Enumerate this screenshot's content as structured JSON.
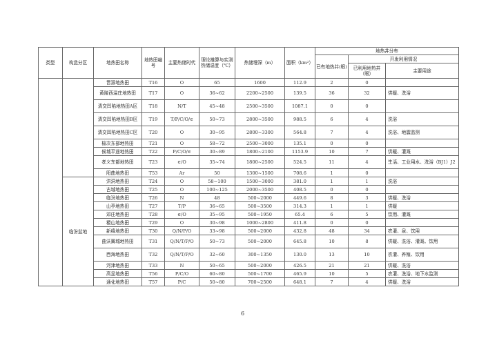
{
  "headers": {
    "type": "类型",
    "zone": "构造分区",
    "name": "地热田名称",
    "code": "地热田编号",
    "era": "主要热储时代",
    "temp": "理论推算与实测热储温度（℃）",
    "depth": "热储埋深（m）",
    "area": "面积（km²）",
    "wells_group": "地热井分布",
    "existing": "已有地热井(眼)",
    "dev_group": "开发利用情况",
    "used": "已利用地热井（眼）",
    "use": "主要用途"
  },
  "sections": [
    {
      "zone": "",
      "rows": [
        {
          "name": "晋源地热田",
          "code": "T16",
          "era": "O",
          "temp": "65",
          "depth": "1600",
          "area": "112.9",
          "existing": "2",
          "used": "0",
          "use": "",
          "tall": false
        },
        {
          "name": "黄陵西温庄地热田",
          "code": "T17",
          "era": "O",
          "temp": "36~62",
          "depth": "2200~2500",
          "area": "139.5",
          "existing": "36",
          "used": "32",
          "use": "供暖、洗浴",
          "tall": true
        },
        {
          "name": "清交凹陷地热田A区",
          "code": "T18",
          "era": "N/T",
          "temp": "45~48",
          "depth": "2500~3500",
          "area": "1087.1",
          "existing": "0",
          "used": "0",
          "use": "",
          "tall": true
        },
        {
          "name": "清交凹陷地热田B区",
          "code": "T19",
          "era": "T/P/C/O/∈",
          "temp": "50~73",
          "depth": "2800~3500",
          "area": "988.5",
          "existing": "6",
          "used": "4",
          "use": "洗浴",
          "tall": true
        },
        {
          "name": "清交凹陷地热田C区",
          "code": "T20",
          "era": "O",
          "temp": "30~95",
          "depth": "2800~3300",
          "area": "564.8",
          "existing": "7",
          "used": "4",
          "use": "洗浴、地震监测",
          "tall": true
        },
        {
          "name": "榆次东部地热田",
          "code": "T21",
          "era": "O",
          "temp": "58~72",
          "depth": "2500~3000",
          "area": "135.1",
          "existing": "0",
          "used": "0",
          "use": "",
          "tall": false
        },
        {
          "name": "候城平遥地热田",
          "code": "T22",
          "era": "P/C/O/∈",
          "temp": "30~89",
          "depth": "1800~2100",
          "area": "1153.9",
          "existing": "10",
          "used": "7",
          "use": "供暖、灌溉",
          "tall": false
        },
        {
          "name": "孝义东部地热田",
          "code": "T23",
          "era": "∈/O",
          "temp": "35~74",
          "depth": "1800~2500",
          "area": "524.5",
          "existing": "11",
          "used": "4",
          "use": "生活、工业用水、洗浴（BJ1）J2",
          "tall": true
        },
        {
          "name": "阳曲地热田",
          "code": "T53",
          "era": "Ar",
          "temp": "50",
          "depth": "1300~1500",
          "area": "708.6",
          "existing": "1",
          "used": "0",
          "use": "",
          "tall": false
        }
      ]
    },
    {
      "zone": "临汾盆地",
      "rows": [
        {
          "name": "洪洞地热田",
          "code": "T24",
          "era": "O",
          "temp": "58~100",
          "depth": "1500~3000",
          "area": "381.0",
          "existing": "1",
          "used": "1",
          "use": "洗浴",
          "tall": false
        },
        {
          "name": "古城地热田",
          "code": "T25",
          "era": "O",
          "temp": "100~125",
          "depth": "2000~3500",
          "area": "408.5",
          "existing": "0",
          "used": "0",
          "use": "",
          "tall": false
        },
        {
          "name": "临汾地热田",
          "code": "T26",
          "era": "N",
          "temp": "48",
          "depth": "500~2000",
          "area": "449.6",
          "existing": "8",
          "used": "3",
          "use": "供暖、洗浴",
          "tall": false
        },
        {
          "name": "山亭地热田",
          "code": "T27",
          "era": "T/P",
          "temp": "36~65",
          "depth": "500~3500",
          "area": "314.3",
          "existing": "1",
          "used": "1",
          "use": "供暖",
          "tall": false
        },
        {
          "name": "邓庄地热田",
          "code": "T28",
          "era": "∈/O",
          "temp": "35~95",
          "depth": "500~1950",
          "area": "65.4",
          "existing": "6",
          "used": "5",
          "use": "饮用、灌溉",
          "tall": false
        },
        {
          "name": "稷山地热田",
          "code": "T29",
          "era": "O",
          "temp": "30~98",
          "depth": "1000~2800",
          "area": "411.8",
          "existing": "0",
          "used": "0",
          "use": "",
          "tall": false
        },
        {
          "name": "新绛地热田",
          "code": "T30",
          "era": "Q/N/P/O",
          "temp": "33~98",
          "depth": "500~2000",
          "area": "432.8",
          "existing": "48",
          "used": "34",
          "use": "农灌、泉、饮用",
          "tall": false
        },
        {
          "name": "曲沃翼城地热田",
          "code": "T31",
          "era": "Q/N/T/P/O",
          "temp": "50~73",
          "depth": "500~2000",
          "area": "645.8",
          "existing": "10",
          "used": "8",
          "use": "供暖、洗浴、灌溉、饮用",
          "tall": true
        },
        {
          "name": "西海地热田",
          "code": "T32",
          "era": "Q/N/T/P/O",
          "temp": "32~60",
          "depth": "300~1350",
          "area": "130.0",
          "existing": "13",
          "used": "10",
          "use": "农灌、养殖、饮用",
          "tall": true
        },
        {
          "name": "河津地热田",
          "code": "T33",
          "era": "N",
          "temp": "50~65",
          "depth": "500~2000",
          "area": "426.5",
          "existing": "21",
          "used": "21",
          "use": "供暖、洗浴",
          "tall": false
        },
        {
          "name": "高显地热田",
          "code": "T56",
          "era": "P/C/O",
          "temp": "60~80",
          "depth": "500~1700",
          "area": "465.9",
          "existing": "10",
          "used": "5",
          "use": "农灌、洗浴、地下水监测",
          "tall": false
        },
        {
          "name": "通化地热田",
          "code": "T57",
          "era": "P/C",
          "temp": "50~80",
          "depth": "700~2500",
          "area": "648.1",
          "existing": "7",
          "used": "4",
          "use": "供暖、洗浴",
          "tall": false
        }
      ]
    }
  ],
  "page_number": "6"
}
